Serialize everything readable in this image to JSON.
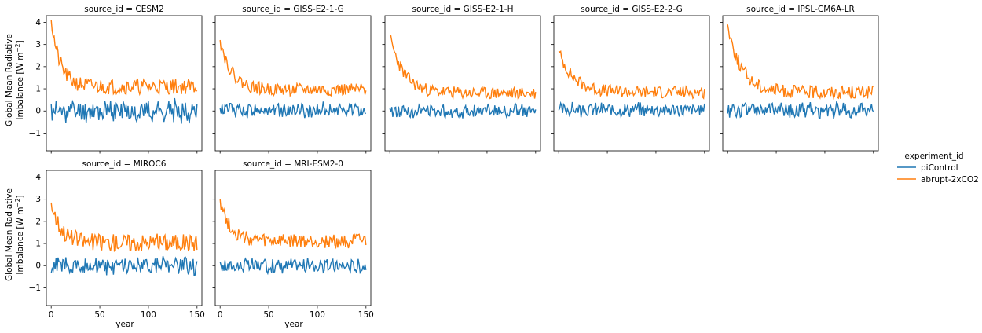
{
  "legend": {
    "title": "experiment_id",
    "placement": "right",
    "entries": [
      {
        "label": "piControl",
        "color": "#1f77b4"
      },
      {
        "label": "abrupt-2xCO2",
        "color": "#ff7f0e"
      }
    ]
  },
  "chart_data": {
    "type": "line",
    "layout": "facet grid, 5 columns, 2 rows",
    "grid": false,
    "xlabel": "year",
    "ylabel_line1": "Global Mean Radiative",
    "ylabel_line2": "Imbalance [W m",
    "ylabel_sup": "−2",
    "ylabel_close": "]",
    "xlim": [
      -5,
      155
    ],
    "ylim": [
      -1.8,
      4.3
    ],
    "xticks": [
      0,
      50,
      100,
      150
    ],
    "yticks": [
      -1,
      0,
      1,
      2,
      3,
      4
    ],
    "panels": [
      {
        "title": "source_id = CESM2",
        "pi": {
          "mean": 0.0,
          "amp": 0.45,
          "seed": 11
        },
        "co2": {
          "start": 4.1,
          "end": 1.1,
          "tau": 9,
          "amp": 0.35,
          "seed": 21
        }
      },
      {
        "title": "source_id = GISS-E2-1-G",
        "pi": {
          "mean": 0.05,
          "amp": 0.3,
          "seed": 12
        },
        "co2": {
          "start": 3.2,
          "end": 0.95,
          "tau": 12,
          "amp": 0.28,
          "seed": 22
        }
      },
      {
        "title": "source_id = GISS-E2-1-H",
        "pi": {
          "mean": 0.0,
          "amp": 0.28,
          "seed": 13
        },
        "co2": {
          "start": 3.4,
          "end": 0.8,
          "tau": 14,
          "amp": 0.28,
          "seed": 23
        }
      },
      {
        "title": "source_id = GISS-E2-2-G",
        "pi": {
          "mean": 0.05,
          "amp": 0.28,
          "seed": 14
        },
        "co2": {
          "start": 2.7,
          "end": 0.85,
          "tau": 15,
          "amp": 0.28,
          "seed": 24
        }
      },
      {
        "title": "source_id = IPSL-CM6A-LR",
        "pi": {
          "mean": 0.05,
          "amp": 0.32,
          "seed": 15
        },
        "co2": {
          "start": 3.9,
          "end": 0.85,
          "tau": 14,
          "amp": 0.3,
          "seed": 25
        }
      },
      {
        "title": "source_id = MIROC6",
        "pi": {
          "mean": 0.0,
          "amp": 0.35,
          "seed": 16
        },
        "co2": {
          "start": 2.85,
          "end": 1.05,
          "tau": 10,
          "amp": 0.4,
          "seed": 26
        }
      },
      {
        "title": "source_id = MRI-ESM2-0",
        "pi": {
          "mean": 0.0,
          "amp": 0.3,
          "seed": 17
        },
        "co2": {
          "start": 3.0,
          "end": 1.1,
          "tau": 10,
          "amp": 0.32,
          "seed": 27
        }
      }
    ]
  }
}
